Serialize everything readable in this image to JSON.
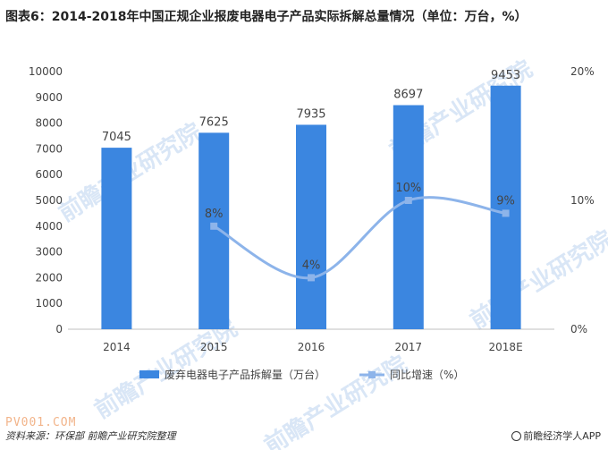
{
  "title": "图表6：2014-2018年中国正规企业报废电器电子产品实际拆解总量情况（单位：万台，%）",
  "colors": {
    "bar": "#3b86e0",
    "line": "#8db4ea",
    "axis": "#bfbfbf",
    "text": "#444444",
    "watermark": "#d9e6f6"
  },
  "chart_data": {
    "type": "bar+line",
    "categories": [
      "2014",
      "2015",
      "2016",
      "2017",
      "2018E"
    ],
    "series": [
      {
        "name": "废弃电器电子产品拆解量（万台）",
        "type": "bar",
        "axis": "left",
        "values": [
          7045,
          7625,
          7935,
          8697,
          9453
        ],
        "labels": [
          "7045",
          "7625",
          "7935",
          "8697",
          "9453"
        ]
      },
      {
        "name": "同比增速（%）",
        "type": "line",
        "axis": "right",
        "values": [
          null,
          8,
          4,
          10,
          9
        ],
        "labels": [
          "",
          "8%",
          "4%",
          "10%",
          "9%"
        ]
      }
    ],
    "left_axis": {
      "min": 0,
      "max": 10000,
      "step": 1000,
      "ticks": [
        "0",
        "1000",
        "2000",
        "3000",
        "4000",
        "5000",
        "6000",
        "7000",
        "8000",
        "9000",
        "10000"
      ]
    },
    "right_axis": {
      "min": 0,
      "max": 20,
      "ticks": [
        "0%",
        "10%",
        "20%"
      ]
    },
    "legend_position": "bottom"
  },
  "footer": {
    "source": "资料来源：环保部  前瞻产业研究院整理",
    "brand": "前瞻经济学人APP"
  },
  "watermark": {
    "text": "前瞻产业研究院",
    "site": "PV001.COM"
  }
}
